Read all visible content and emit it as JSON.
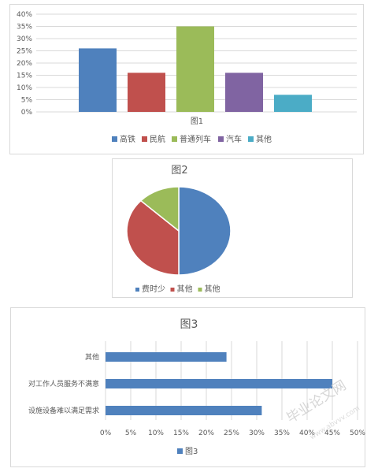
{
  "chart_data": [
    {
      "type": "bar",
      "title": "图1",
      "categories": [
        "高铁",
        "民航",
        "普通列车",
        "汽车",
        "其他"
      ],
      "values": [
        0.26,
        0.16,
        0.35,
        0.16,
        0.07
      ],
      "colors": [
        "#4f81bd",
        "#c0504d",
        "#9bbb59",
        "#8064a2",
        "#4bacc6"
      ],
      "ylim": [
        0,
        0.4
      ],
      "yticks": [
        "0%",
        "5%",
        "10%",
        "15%",
        "20%",
        "25%",
        "30%",
        "35%",
        "40%"
      ],
      "grid": true,
      "legend": "bottom",
      "legend_entries": [
        "高铁",
        "民航",
        "普通列车",
        "汽车",
        "其他"
      ]
    },
    {
      "type": "pie",
      "title": "图2",
      "categories": [
        "费时少",
        "其他",
        "其他"
      ],
      "values": [
        0.5,
        0.37,
        0.13
      ],
      "colors": [
        "#4f81bd",
        "#c0504d",
        "#9bbb59"
      ],
      "legend": "bottom"
    },
    {
      "type": "bar",
      "orientation": "horizontal",
      "title": "图3",
      "categories": [
        "其他",
        "对工作人员服务不满意",
        "设施设备难以满足需求"
      ],
      "series": [
        {
          "name": "图3",
          "values": [
            0.24,
            0.45,
            0.31
          ]
        }
      ],
      "colors": [
        "#4f81bd"
      ],
      "xlim": [
        0,
        0.5
      ],
      "xticks": [
        "0%",
        "5%",
        "10%",
        "15%",
        "20%",
        "25%",
        "30%",
        "35%",
        "40%",
        "45%",
        "50%"
      ],
      "grid": true,
      "legend": "bottom"
    }
  ],
  "watermark": {
    "text": "毕业论文网",
    "url": "www.abvvv.com"
  }
}
